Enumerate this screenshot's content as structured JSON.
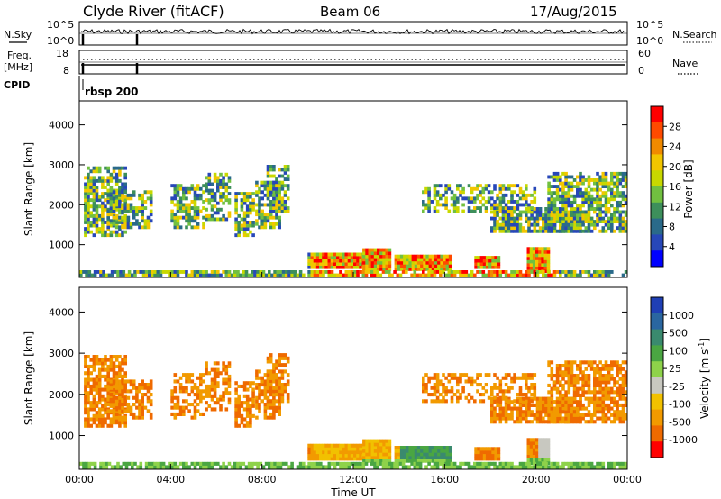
{
  "header": {
    "station": "Clyde River (fitACF)",
    "beam": "Beam 06",
    "date": "17/Aug/2015"
  },
  "left_labels": {
    "nsky": "N.Sky",
    "freq": "Freq.",
    "freq_unit": "[MHz]",
    "cpid": "CPID"
  },
  "right_labels": {
    "nsearch": "N.Search",
    "nave": "Nave"
  },
  "cpid_label": "rbsp 200",
  "chart_data": [
    {
      "type": "line",
      "name": "noise",
      "y_ticks_left": [
        "10^5",
        "10^0"
      ],
      "y_ticks_right": [
        "10^5",
        "10^0"
      ]
    },
    {
      "type": "line",
      "name": "freq-nave",
      "y_ticks_left": [
        "18",
        "8"
      ],
      "y_ticks_right": [
        "60",
        "0"
      ]
    },
    {
      "type": "heatmap",
      "name": "power",
      "ylabel": "Slant Range [km]",
      "yticks": [
        "4000",
        "3000",
        "2000",
        "1000"
      ],
      "ylim": [
        180,
        4600
      ],
      "colorbar": {
        "label": "Power [dB]",
        "ticks": [
          "28",
          "24",
          "20",
          "16",
          "12",
          "8",
          "4"
        ],
        "colors": [
          "#ff0000",
          "#ff4a00",
          "#f08a00",
          "#f2c600",
          "#c8d800",
          "#71c040",
          "#3d8f5b",
          "#2a6a8a",
          "#2747b8",
          "#0000ff"
        ]
      }
    },
    {
      "type": "heatmap",
      "name": "velocity",
      "ylabel": "Slant Range [km]",
      "yticks": [
        "4000",
        "3000",
        "2000",
        "1000"
      ],
      "ylim": [
        180,
        4600
      ],
      "xlabel": "Time UT",
      "xticks": [
        "00:00",
        "04:00",
        "08:00",
        "12:00",
        "16:00",
        "20:00",
        "00:00"
      ],
      "colorbar": {
        "label": "Velocity [m s",
        "label_sup": "-1",
        "label_end": "]",
        "ticks": [
          "1000",
          "500",
          "100",
          "25",
          "-25",
          "-100",
          "-500",
          "-1000"
        ],
        "colors": [
          "#1f3fb5",
          "#2a66a0",
          "#3a8a6e",
          "#4aa642",
          "#8ed24a",
          "#c8c8c0",
          "#f2c100",
          "#f29a00",
          "#ef6a00",
          "#ff0000"
        ]
      }
    }
  ]
}
